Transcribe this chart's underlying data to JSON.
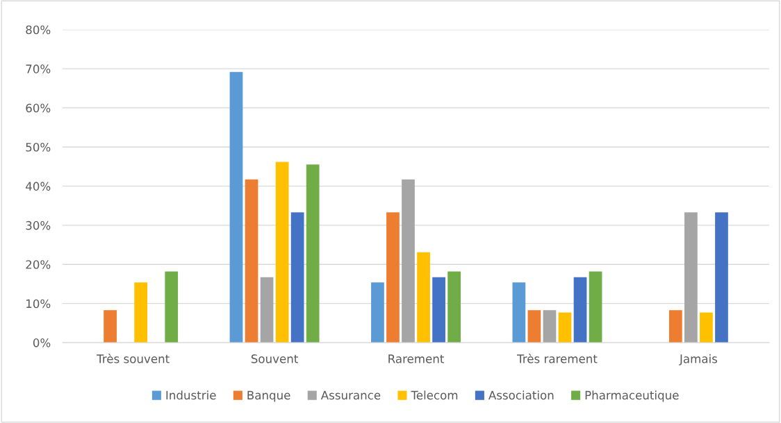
{
  "chart_data": {
    "type": "bar",
    "categories": [
      "Très souvent",
      "Souvent",
      "Rarement",
      "Très rarement",
      "Jamais"
    ],
    "series": [
      {
        "name": "Industrie",
        "color": "#5b9bd5",
        "values": [
          0,
          69.2,
          15.4,
          15.4,
          0
        ]
      },
      {
        "name": "Banque",
        "color": "#ed7d31",
        "values": [
          8.3,
          41.7,
          33.3,
          8.3,
          8.3
        ]
      },
      {
        "name": "Assurance",
        "color": "#a5a5a5",
        "values": [
          0,
          16.7,
          41.7,
          8.3,
          33.3
        ]
      },
      {
        "name": "Telecom",
        "color": "#ffc000",
        "values": [
          15.4,
          46.2,
          23.1,
          7.7,
          7.7
        ]
      },
      {
        "name": "Association",
        "color": "#4472c4",
        "values": [
          0,
          33.3,
          16.7,
          16.7,
          33.3
        ]
      },
      {
        "name": "Pharmaceutique",
        "color": "#70ad47",
        "values": [
          18.2,
          45.5,
          18.2,
          18.2,
          0
        ]
      }
    ],
    "ylim": [
      0,
      80
    ],
    "yticks": [
      {
        "value": 0,
        "label": "0%"
      },
      {
        "value": 10,
        "label": "10%"
      },
      {
        "value": 20,
        "label": "20%"
      },
      {
        "value": 30,
        "label": "30%"
      },
      {
        "value": 40,
        "label": "40%"
      },
      {
        "value": 50,
        "label": "50%"
      },
      {
        "value": 60,
        "label": "60%"
      },
      {
        "value": 70,
        "label": "70%"
      },
      {
        "value": 80,
        "label": "80%"
      }
    ],
    "grid": "y",
    "legend": "bottom"
  }
}
